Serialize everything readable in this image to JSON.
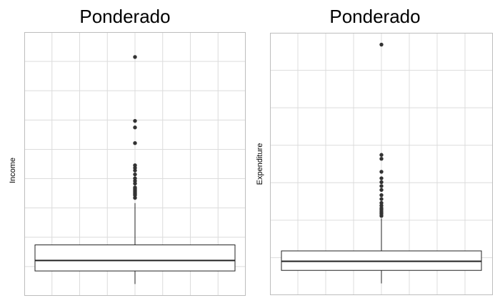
{
  "chart_data": [
    {
      "type": "box",
      "title": "Ponderado",
      "xlabel": "",
      "ylabel": "Income",
      "grid": true,
      "ylim": [
        0,
        100
      ],
      "box": {
        "lower_whisker": 4,
        "q1": 9,
        "median": 13,
        "q3": 19,
        "upper_whisker": 35
      },
      "outliers": [
        37,
        38,
        38.5,
        39,
        39.5,
        40,
        40.5,
        41,
        42.5,
        43.5,
        44.5,
        46,
        47.5,
        48.5,
        49.5,
        58,
        64,
        66.5,
        91
      ]
    },
    {
      "type": "box",
      "title": "Ponderado",
      "xlabel": "",
      "ylabel": "Expenditure",
      "grid": true,
      "ylim": [
        0,
        100
      ],
      "box": {
        "lower_whisker": 4,
        "q1": 9,
        "median": 12.5,
        "q3": 16.5,
        "upper_whisker": 29
      },
      "outliers": [
        30,
        30.8,
        31.5,
        32.3,
        33,
        34,
        35,
        36.5,
        38,
        40,
        41.5,
        43,
        44.5,
        47,
        52,
        53.5,
        96
      ]
    }
  ]
}
